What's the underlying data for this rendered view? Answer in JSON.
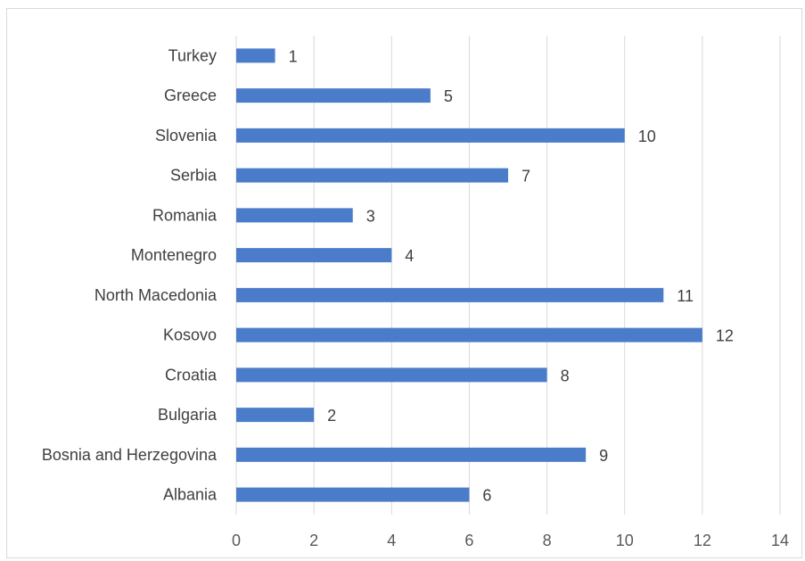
{
  "chart_data": {
    "type": "bar",
    "orientation": "horizontal",
    "title": "",
    "xlabel": "",
    "ylabel": "",
    "categories": [
      "Turkey",
      "Greece",
      "Slovenia",
      "Serbia",
      "Romania",
      "Montenegro",
      "North Macedonia",
      "Kosovo",
      "Croatia",
      "Bulgaria",
      "Bosnia and Herzegovina",
      "Albania"
    ],
    "values": [
      1,
      5,
      10,
      7,
      3,
      4,
      11,
      12,
      8,
      2,
      9,
      6
    ],
    "xlim": [
      0,
      14
    ],
    "xticks": [
      0,
      2,
      4,
      6,
      8,
      10,
      12,
      14
    ],
    "grid": "vertical",
    "legend": "none",
    "data_labels": true,
    "bar_color": "#4a7cc9",
    "grid_color": "#d9d9d9"
  }
}
